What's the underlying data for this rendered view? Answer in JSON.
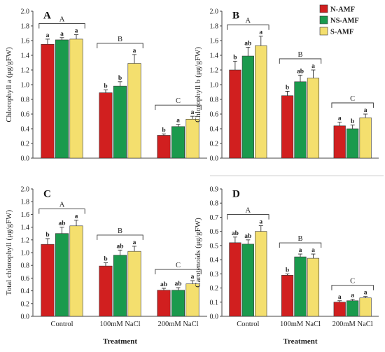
{
  "legend": [
    {
      "name": "N-AMF",
      "color": "#d11f1f"
    },
    {
      "name": "NS-AMF",
      "color": "#1a9a4d"
    },
    {
      "name": "S-AMF",
      "color": "#f4df6e"
    }
  ],
  "x_title": "Treatment",
  "chart_data": [
    {
      "type": "bar",
      "panel": "A",
      "ylabel": "Chlorophyll a (μg/gFW)",
      "ylim": [
        0,
        2.0
      ],
      "ytick_step": 0.2,
      "show_xticks": false,
      "categories": [
        "Control",
        "100mM NaCl",
        "200mM NaCl"
      ],
      "group_letters": [
        "A",
        "B",
        "C"
      ],
      "series": [
        {
          "name": "N-AMF",
          "values": [
            1.55,
            0.89,
            0.31
          ],
          "errors": [
            0.07,
            0.04,
            0.02
          ],
          "letters": [
            "a",
            "b",
            "b"
          ]
        },
        {
          "name": "NS-AMF",
          "values": [
            1.61,
            0.98,
            0.43
          ],
          "errors": [
            0.03,
            0.06,
            0.03
          ],
          "letters": [
            "a",
            "b",
            "a"
          ]
        },
        {
          "name": "S-AMF",
          "values": [
            1.62,
            1.29,
            0.53
          ],
          "errors": [
            0.06,
            0.12,
            0.04
          ],
          "letters": [
            "a",
            "a",
            "a"
          ]
        }
      ]
    },
    {
      "type": "bar",
      "panel": "B",
      "ylabel": "Chlorophyll b (μg/gFW)",
      "ylim": [
        0,
        2.0
      ],
      "ytick_step": 0.2,
      "show_xticks": false,
      "categories": [
        "Control",
        "100mM NaCl",
        "200mM NaCl"
      ],
      "group_letters": [
        "A",
        "B",
        "C"
      ],
      "series": [
        {
          "name": "N-AMF",
          "values": [
            1.2,
            0.85,
            0.44
          ],
          "errors": [
            0.12,
            0.06,
            0.05
          ],
          "letters": [
            "b",
            "b",
            "a"
          ]
        },
        {
          "name": "NS-AMF",
          "values": [
            1.39,
            1.04,
            0.4
          ],
          "errors": [
            0.12,
            0.09,
            0.05
          ],
          "letters": [
            "ab",
            "ab",
            "b"
          ]
        },
        {
          "name": "S-AMF",
          "values": [
            1.53,
            1.09,
            0.55
          ],
          "errors": [
            0.13,
            0.11,
            0.05
          ],
          "letters": [
            "a",
            "a",
            "a"
          ]
        }
      ]
    },
    {
      "type": "bar",
      "panel": "C",
      "ylabel": "Total chlorophyll (μg/gFW)",
      "ylim": [
        0,
        2.0
      ],
      "ytick_step": 0.2,
      "show_xticks": true,
      "categories": [
        "Control",
        "100mM NaCl",
        "200mM NaCl"
      ],
      "group_letters": [
        "A",
        "B",
        "C"
      ],
      "series": [
        {
          "name": "N-AMF",
          "values": [
            1.13,
            0.79,
            0.41
          ],
          "errors": [
            0.09,
            0.05,
            0.03
          ],
          "letters": [
            "b",
            "b",
            "ab"
          ]
        },
        {
          "name": "NS-AMF",
          "values": [
            1.3,
            0.96,
            0.41
          ],
          "errors": [
            0.1,
            0.08,
            0.04
          ],
          "letters": [
            "ab",
            "ab",
            "ab"
          ]
        },
        {
          "name": "S-AMF",
          "values": [
            1.42,
            1.02,
            0.51
          ],
          "errors": [
            0.09,
            0.08,
            0.05
          ],
          "letters": [
            "a",
            "a",
            "a"
          ]
        }
      ]
    },
    {
      "type": "bar",
      "panel": "D",
      "ylabel": "Carotenoids (μg/gFW)",
      "ylim": [
        0,
        0.9
      ],
      "ytick_step": 0.1,
      "show_xticks": true,
      "categories": [
        "Control",
        "100mM NaCl",
        "200mM NaCl"
      ],
      "group_letters": [
        "A",
        "B",
        "C"
      ],
      "series": [
        {
          "name": "N-AMF",
          "values": [
            0.52,
            0.29,
            0.1
          ],
          "errors": [
            0.04,
            0.01,
            0.01
          ],
          "letters": [
            "ab",
            "b",
            "a"
          ]
        },
        {
          "name": "NS-AMF",
          "values": [
            0.51,
            0.42,
            0.11
          ],
          "errors": [
            0.03,
            0.02,
            0.01
          ],
          "letters": [
            "ab",
            "a",
            "a"
          ]
        },
        {
          "name": "S-AMF",
          "values": [
            0.6,
            0.41,
            0.13
          ],
          "errors": [
            0.04,
            0.03,
            0.01
          ],
          "letters": [
            "a",
            "a",
            "a"
          ]
        }
      ]
    }
  ]
}
